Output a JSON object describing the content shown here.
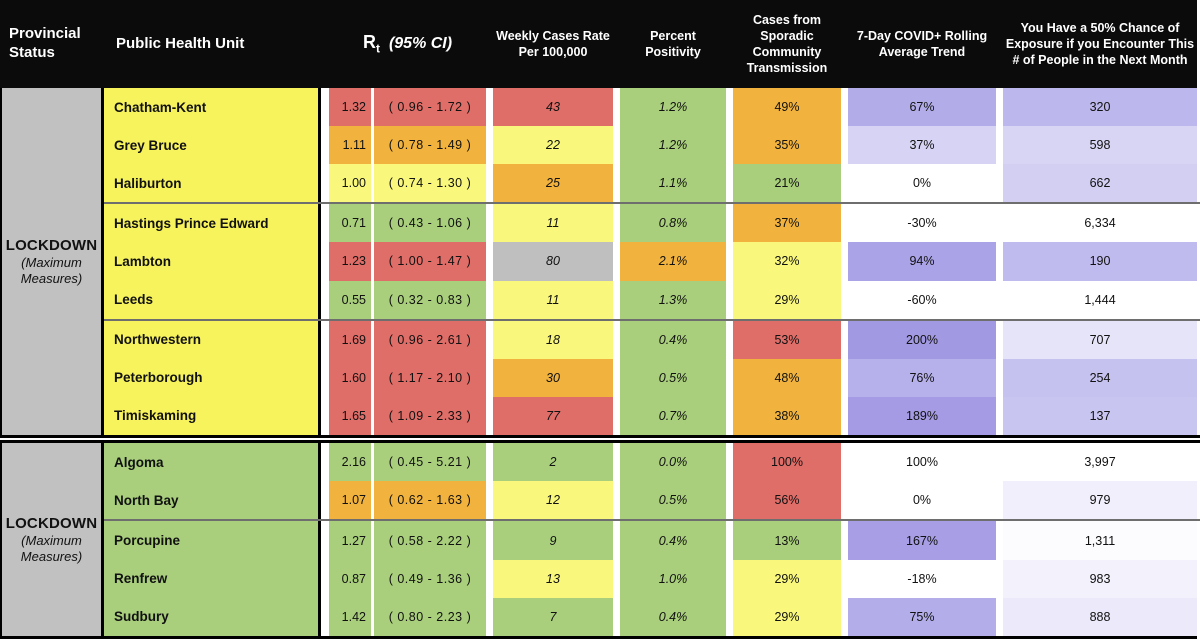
{
  "chart_data": {
    "type": "table",
    "header": {
      "provincial_status": "Provincial Status",
      "public_health_unit": "Public Health Unit",
      "rt_symbol": "R",
      "rt_subscript": "t",
      "rt_ci_note": "(95% CI)",
      "weekly_cases": "Weekly Cases Rate Per 100,000",
      "percent_positivity": "Percent Positivity",
      "sporadic": "Cases from Sporadic Community Transmission",
      "rolling": "7-Day COVID+ Rolling Average Trend",
      "exposure": "You Have a 50% Chance of Exposure if you Encounter This # of People in the Next Month"
    },
    "palette": {
      "red": "#df6d68",
      "orange": "#f1b33e",
      "yellow": "#f9f87d",
      "green": "#a9cf7c",
      "gray": "#bfbfbf",
      "white": "#ffffff",
      "phu_yellow": "#f7f35c",
      "phu_green": "#a9cf7c",
      "status_gray": "#c1c1c1",
      "header_bg": "#0b0b0b"
    },
    "groups": [
      {
        "status_label": "LOCKDOWN",
        "status_sublabel": "(Maximum Measures)",
        "phu_bg": "phu_yellow",
        "rows": [
          {
            "phu": "Chatham-Kent",
            "rt": "1.32",
            "ci_low": "0.96",
            "ci_high": "1.72",
            "rt_color": "red",
            "weekly": "43",
            "weekly_color": "red",
            "positivity": "1.2%",
            "positivity_color": "green",
            "sporadic": "49%",
            "sporadic_color": "orange",
            "rolling": "67%",
            "rolling_color": "#b2ace9",
            "exposure": "320",
            "exposure_color": "#bcb7ec",
            "divider_after": false
          },
          {
            "phu": "Grey Bruce",
            "rt": "1.11",
            "ci_low": "0.78",
            "ci_high": "1.49",
            "rt_color": "orange",
            "weekly": "22",
            "weekly_color": "yellow",
            "positivity": "1.2%",
            "positivity_color": "green",
            "sporadic": "35%",
            "sporadic_color": "orange",
            "rolling": "37%",
            "rolling_color": "#d6d3f4",
            "exposure": "598",
            "exposure_color": "#d8d5f4",
            "divider_after": false
          },
          {
            "phu": "Haliburton",
            "rt": "1.00",
            "ci_low": "0.74",
            "ci_high": "1.30",
            "rt_color": "yellow",
            "weekly": "25",
            "weekly_color": "orange",
            "positivity": "1.1%",
            "positivity_color": "green",
            "sporadic": "21%",
            "sporadic_color": "green",
            "rolling": "0%",
            "rolling_color": "white",
            "exposure": "662",
            "exposure_color": "#d2cff3",
            "divider_after": true
          },
          {
            "phu": "Hastings Prince Edward",
            "rt": "0.71",
            "ci_low": "0.43",
            "ci_high": "1.06",
            "rt_color": "green",
            "weekly": "11",
            "weekly_color": "yellow",
            "positivity": "0.8%",
            "positivity_color": "green",
            "sporadic": "37%",
            "sporadic_color": "orange",
            "rolling": "-30%",
            "rolling_color": "white",
            "exposure": "6,334",
            "exposure_color": "white",
            "divider_after": false
          },
          {
            "phu": "Lambton",
            "rt": "1.23",
            "ci_low": "1.00",
            "ci_high": "1.47",
            "rt_color": "red",
            "weekly": "80",
            "weekly_color": "gray",
            "positivity": "2.1%",
            "positivity_color": "orange",
            "sporadic": "32%",
            "sporadic_color": "yellow",
            "rolling": "94%",
            "rolling_color": "#aaa3e7",
            "exposure": "190",
            "exposure_color": "#c0bbee",
            "divider_after": false
          },
          {
            "phu": "Leeds",
            "rt": "0.55",
            "ci_low": "0.32",
            "ci_high": "0.83",
            "rt_color": "green",
            "weekly": "11",
            "weekly_color": "yellow",
            "positivity": "1.3%",
            "positivity_color": "green",
            "sporadic": "29%",
            "sporadic_color": "yellow",
            "rolling": "-60%",
            "rolling_color": "white",
            "exposure": "1,444",
            "exposure_color": "white",
            "divider_after": true
          },
          {
            "phu": "Northwestern",
            "rt": "1.69",
            "ci_low": "0.96",
            "ci_high": "2.61",
            "rt_color": "red",
            "weekly": "18",
            "weekly_color": "yellow",
            "positivity": "0.4%",
            "positivity_color": "green",
            "sporadic": "53%",
            "sporadic_color": "red",
            "rolling": "200%",
            "rolling_color": "#a299e3",
            "exposure": "707",
            "exposure_color": "#e6e4f8",
            "divider_after": false
          },
          {
            "phu": "Peterborough",
            "rt": "1.60",
            "ci_low": "1.17",
            "ci_high": "2.10",
            "rt_color": "red",
            "weekly": "30",
            "weekly_color": "orange",
            "positivity": "0.5%",
            "positivity_color": "green",
            "sporadic": "48%",
            "sporadic_color": "orange",
            "rolling": "76%",
            "rolling_color": "#b7b1eb",
            "exposure": "254",
            "exposure_color": "#c6c2f0",
            "divider_after": false
          },
          {
            "phu": "Timiskaming",
            "rt": "1.65",
            "ci_low": "1.09",
            "ci_high": "2.33",
            "rt_color": "red",
            "weekly": "77",
            "weekly_color": "red",
            "positivity": "0.7%",
            "positivity_color": "green",
            "sporadic": "38%",
            "sporadic_color": "orange",
            "rolling": "189%",
            "rolling_color": "#a49be4",
            "exposure": "137",
            "exposure_color": "#c9c5f1",
            "divider_after": false
          }
        ]
      },
      {
        "status_label": "LOCKDOWN",
        "status_sublabel": "(Maximum Measures)",
        "phu_bg": "phu_green",
        "rows": [
          {
            "phu": "Algoma",
            "rt": "2.16",
            "ci_low": "0.45",
            "ci_high": "5.21",
            "rt_color": "green",
            "weekly": "2",
            "weekly_color": "green",
            "positivity": "0.0%",
            "positivity_color": "green",
            "sporadic": "100%",
            "sporadic_color": "red",
            "rolling": "100%",
            "rolling_color": "white",
            "exposure": "3,997",
            "exposure_color": "white",
            "divider_after": false
          },
          {
            "phu": "North Bay",
            "rt": "1.07",
            "ci_low": "0.62",
            "ci_high": "1.63",
            "rt_color": "orange",
            "weekly": "12",
            "weekly_color": "yellow",
            "positivity": "0.5%",
            "positivity_color": "green",
            "sporadic": "56%",
            "sporadic_color": "red",
            "rolling": "0%",
            "rolling_color": "white",
            "exposure": "979",
            "exposure_color": "#f0effb",
            "divider_after": true
          },
          {
            "phu": "Porcupine",
            "rt": "1.27",
            "ci_low": "0.58",
            "ci_high": "2.22",
            "rt_color": "green",
            "weekly": "9",
            "weekly_color": "green",
            "positivity": "0.4%",
            "positivity_color": "green",
            "sporadic": "13%",
            "sporadic_color": "green",
            "rolling": "167%",
            "rolling_color": "#a79ee6",
            "exposure": "1,311",
            "exposure_color": "#fcfcfe",
            "divider_after": false
          },
          {
            "phu": "Renfrew",
            "rt": "0.87",
            "ci_low": "0.49",
            "ci_high": "1.36",
            "rt_color": "green",
            "weekly": "13",
            "weekly_color": "yellow",
            "positivity": "1.0%",
            "positivity_color": "green",
            "sporadic": "29%",
            "sporadic_color": "yellow",
            "rolling": "-18%",
            "rolling_color": "white",
            "exposure": "983",
            "exposure_color": "#f2f1fc",
            "divider_after": false
          },
          {
            "phu": "Sudbury",
            "rt": "1.42",
            "ci_low": "0.80",
            "ci_high": "2.23",
            "rt_color": "green",
            "weekly": "7",
            "weekly_color": "green",
            "positivity": "0.4%",
            "positivity_color": "green",
            "sporadic": "29%",
            "sporadic_color": "yellow",
            "rolling": "75%",
            "rolling_color": "#b3ade9",
            "exposure": "888",
            "exposure_color": "#eceafa",
            "divider_after": false
          }
        ]
      }
    ]
  }
}
